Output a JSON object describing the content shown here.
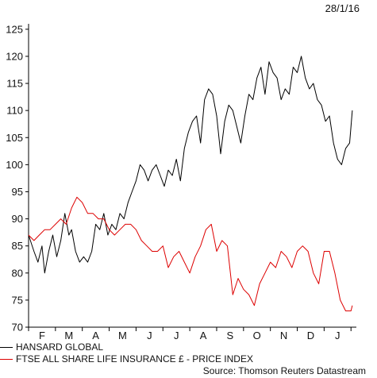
{
  "header": {
    "date": "28/1/16"
  },
  "footer": {
    "source": "Source: Thomson Reuters Datastream"
  },
  "chart_data": {
    "type": "line",
    "x_ticks": [
      "F",
      "M",
      "A",
      "M",
      "J",
      "J",
      "A",
      "S",
      "O",
      "N",
      "D",
      "J"
    ],
    "y_ticks": [
      70,
      75,
      80,
      85,
      90,
      95,
      100,
      105,
      110,
      115,
      120,
      125
    ],
    "ylim": [
      70,
      126
    ],
    "xlim": [
      0,
      12.2
    ],
    "grid": false,
    "legend_position": "bottom-left",
    "series": [
      {
        "name": "HANSARD GLOBAL",
        "color": "#000000",
        "x": [
          0,
          0.2,
          0.35,
          0.5,
          0.6,
          0.75,
          0.9,
          1.05,
          1.2,
          1.35,
          1.5,
          1.6,
          1.75,
          1.9,
          2.05,
          2.2,
          2.35,
          2.5,
          2.65,
          2.8,
          2.95,
          3.1,
          3.25,
          3.4,
          3.55,
          3.7,
          3.85,
          4.0,
          4.15,
          4.3,
          4.45,
          4.6,
          4.75,
          4.9,
          5.05,
          5.2,
          5.35,
          5.5,
          5.65,
          5.8,
          5.95,
          6.1,
          6.25,
          6.4,
          6.55,
          6.7,
          6.85,
          7.0,
          7.15,
          7.3,
          7.45,
          7.6,
          7.75,
          7.9,
          8.05,
          8.2,
          8.35,
          8.5,
          8.65,
          8.8,
          8.95,
          9.1,
          9.25,
          9.4,
          9.55,
          9.7,
          9.85,
          10.0,
          10.15,
          10.3,
          10.45,
          10.6,
          10.75,
          10.9,
          11.05,
          11.2,
          11.35,
          11.5,
          11.65,
          11.8,
          11.95,
          12.05
        ],
        "y": [
          87,
          84,
          82,
          85,
          80,
          84,
          87,
          83,
          86,
          91,
          87,
          88,
          84,
          82,
          83,
          82,
          84,
          89,
          88,
          91,
          87,
          89,
          88,
          91,
          90,
          93,
          95,
          97,
          100,
          99,
          97,
          99,
          100,
          98,
          96,
          99,
          98,
          101,
          97,
          103,
          106,
          108,
          109,
          104,
          112,
          114,
          113,
          109,
          102,
          108,
          111,
          110,
          107,
          104,
          109,
          113,
          112,
          116,
          118,
          113,
          119,
          117,
          116,
          112,
          114,
          113,
          118,
          117,
          120,
          116,
          114,
          115,
          112,
          111,
          108,
          109,
          104,
          101,
          100,
          103,
          104,
          110
        ]
      },
      {
        "name": "FTSE ALL SHARE LIFE INSURANCE £ - PRICE INDEX",
        "color": "#dd0000",
        "x": [
          0,
          0.2,
          0.4,
          0.6,
          0.8,
          1.0,
          1.2,
          1.4,
          1.6,
          1.8,
          2.0,
          2.2,
          2.4,
          2.6,
          2.8,
          3.0,
          3.2,
          3.4,
          3.6,
          3.8,
          4.0,
          4.2,
          4.4,
          4.6,
          4.8,
          5.0,
          5.2,
          5.4,
          5.6,
          5.8,
          6.0,
          6.2,
          6.4,
          6.6,
          6.8,
          7.0,
          7.2,
          7.4,
          7.6,
          7.8,
          8.0,
          8.2,
          8.4,
          8.6,
          8.8,
          9.0,
          9.2,
          9.4,
          9.6,
          9.8,
          10.0,
          10.2,
          10.4,
          10.6,
          10.8,
          11.0,
          11.2,
          11.4,
          11.6,
          11.8,
          12.0,
          12.05
        ],
        "y": [
          87,
          86,
          87,
          88,
          88,
          89,
          90,
          89,
          92,
          94,
          93,
          91,
          91,
          90,
          90,
          88,
          87,
          88,
          89,
          89,
          88,
          86,
          85,
          84,
          84,
          85,
          81,
          83,
          84,
          82,
          80,
          83,
          85,
          88,
          89,
          84,
          86,
          85,
          76,
          79,
          77,
          76,
          74,
          78,
          80,
          82,
          81,
          84,
          83,
          81,
          84,
          85,
          84,
          80,
          78,
          84,
          84,
          80,
          75,
          73,
          73,
          74
        ]
      }
    ]
  }
}
